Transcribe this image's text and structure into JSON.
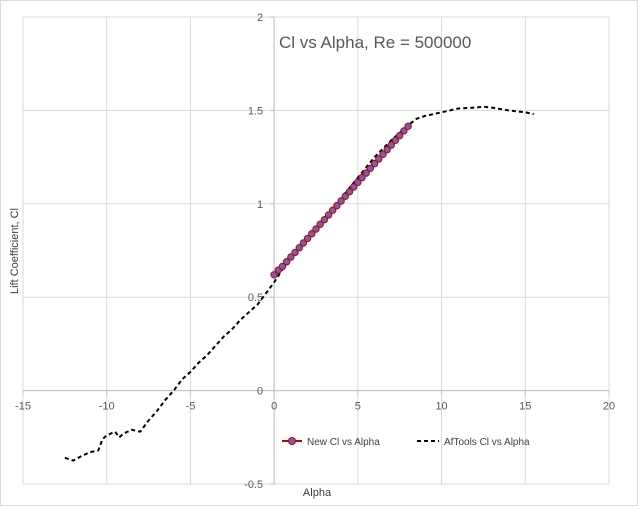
{
  "chart_data": {
    "type": "line",
    "title": "Cl vs Alpha, Re = 500000",
    "xlabel": "Alpha",
    "ylabel": "Lift Coefficient, Cl",
    "xlim": [
      -15,
      20
    ],
    "ylim": [
      -0.5,
      2
    ],
    "x_ticks": [
      "-15",
      "-10",
      "-5",
      "0",
      "5",
      "10",
      "15",
      "20"
    ],
    "y_ticks": [
      "-0.5",
      "0",
      "0.5",
      "1",
      "1.5",
      "2"
    ],
    "grid": true,
    "legend_position": "bottom",
    "series": [
      {
        "name": "New Cl vs Alpha",
        "color": "#c00000",
        "marker_color": "#7060b0",
        "style": "solid-markers",
        "x": [
          0.0,
          0.25,
          0.5,
          0.75,
          1.0,
          1.25,
          1.5,
          1.75,
          2.0,
          2.25,
          2.5,
          2.75,
          3.0,
          3.25,
          3.5,
          3.75,
          4.0,
          4.25,
          4.5,
          4.75,
          5.0,
          5.25,
          5.5,
          5.75,
          6.0,
          6.25,
          6.5,
          6.75,
          7.0,
          7.25,
          7.5,
          7.75,
          8.0
        ],
        "y": [
          0.62,
          0.645,
          0.665,
          0.69,
          0.715,
          0.74,
          0.765,
          0.79,
          0.815,
          0.84,
          0.865,
          0.89,
          0.915,
          0.94,
          0.965,
          0.99,
          1.015,
          1.04,
          1.065,
          1.09,
          1.115,
          1.14,
          1.165,
          1.19,
          1.215,
          1.24,
          1.265,
          1.29,
          1.315,
          1.34,
          1.365,
          1.39,
          1.415
        ]
      },
      {
        "name": "AfTools Cl vs Alpha",
        "color": "#000000",
        "style": "dashed",
        "x": [
          -12.5,
          -12.0,
          -11.5,
          -11.0,
          -10.5,
          -10.25,
          -10.0,
          -9.5,
          -9.25,
          -9.0,
          -8.5,
          -8.0,
          -7.5,
          -7.0,
          -6.5,
          -6.0,
          -5.5,
          -5.0,
          -4.5,
          -4.0,
          -3.5,
          -3.0,
          -2.5,
          -2.0,
          -1.5,
          -1.0,
          -0.5,
          0.0,
          0.5,
          1.0,
          2.0,
          3.0,
          4.0,
          5.0,
          6.0,
          7.0,
          8.0,
          8.5,
          9.0,
          10.0,
          11.0,
          12.0,
          12.5,
          13.0,
          14.0,
          15.0,
          15.5
        ],
        "y": [
          -0.36,
          -0.375,
          -0.35,
          -0.33,
          -0.32,
          -0.26,
          -0.24,
          -0.22,
          -0.25,
          -0.23,
          -0.21,
          -0.22,
          -0.16,
          -0.11,
          -0.05,
          0.0,
          0.06,
          0.1,
          0.15,
          0.19,
          0.24,
          0.29,
          0.33,
          0.38,
          0.42,
          0.46,
          0.52,
          0.58,
          0.65,
          0.71,
          0.81,
          0.92,
          1.03,
          1.14,
          1.25,
          1.34,
          1.42,
          1.455,
          1.47,
          1.49,
          1.51,
          1.515,
          1.52,
          1.515,
          1.5,
          1.49,
          1.48
        ]
      }
    ]
  }
}
